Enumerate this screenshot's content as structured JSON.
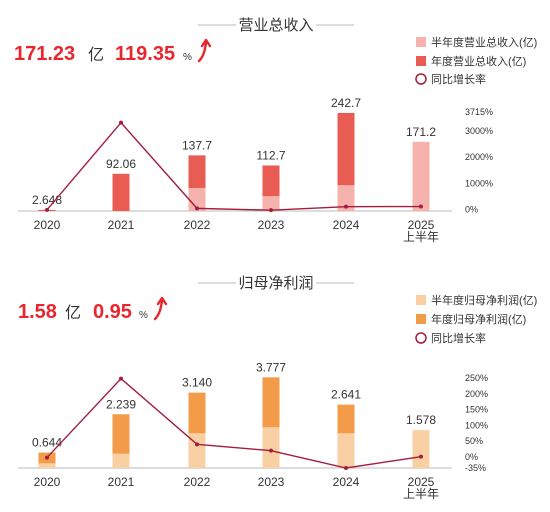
{
  "chart_data": [
    {
      "type": "bar",
      "title": "营业总收入",
      "headline": {
        "value1": "171.23",
        "unit1": "亿",
        "value2": "119.35",
        "unit2": "%"
      },
      "categories": [
        "2020",
        "2021",
        "2022",
        "2023",
        "2024",
        "2025\n上半年"
      ],
      "series": [
        {
          "name": "半年度营业总收入(亿)",
          "kind": "bar-half",
          "values": [
            null,
            null,
            57.0,
            37.0,
            64.0,
            171.23
          ]
        },
        {
          "name": "年度营业总收入(亿)",
          "kind": "bar-annual",
          "values": [
            2.648,
            92.06,
            137.7,
            112.7,
            242.7,
            null
          ]
        },
        {
          "name": "同比增长率",
          "kind": "line",
          "values": [
            -5,
            3310,
            50,
            -18,
            115,
            119.35
          ]
        }
      ],
      "value_labels": [
        "2.648",
        "92.06",
        "137.7",
        "112.7",
        "242.7",
        "171.2"
      ],
      "y_right_ticks": [
        "3715%",
        "3000%",
        "2000%",
        "1000%",
        "0%"
      ],
      "y_right_tick_values": [
        3715,
        3000,
        2000,
        1000,
        0
      ],
      "y_right_range": [
        -50,
        3715
      ],
      "y_left_max": 250,
      "colors": {
        "bar-half": "#f6b2ad",
        "bar-annual": "#e85c54",
        "line": "#a31e3e",
        "accent": "#e8262e"
      }
    },
    {
      "type": "bar",
      "title": "归母净利润",
      "headline": {
        "value1": "1.58",
        "unit1": "亿",
        "value2": "0.95",
        "unit2": "%"
      },
      "categories": [
        "2020",
        "2021",
        "2022",
        "2023",
        "2024",
        "2025\n上半年"
      ],
      "series": [
        {
          "name": "半年度归母净利润(亿)",
          "kind": "bar-half",
          "values": [
            0.2,
            0.6,
            1.45,
            1.7,
            1.45,
            1.578
          ]
        },
        {
          "name": "年度归母净利润(亿)",
          "kind": "bar-annual",
          "values": [
            0.644,
            2.239,
            3.14,
            3.777,
            2.641,
            null
          ]
        },
        {
          "name": "同比增长率",
          "kind": "line",
          "values": [
            -2,
            248,
            40,
            20,
            -35,
            0.95
          ]
        }
      ],
      "value_labels": [
        "0.644",
        "2.239",
        "3.140",
        "3.777",
        "2.641",
        "1.578"
      ],
      "y_right_ticks": [
        "250%",
        "200%",
        "150%",
        "100%",
        "50%",
        "0%",
        "-35%"
      ],
      "y_right_tick_values": [
        250,
        200,
        150,
        100,
        50,
        0,
        -35
      ],
      "y_right_range": [
        -35,
        250
      ],
      "y_left_max": 4.0,
      "colors": {
        "bar-half": "#f9cfa4",
        "bar-annual": "#f29b48",
        "line": "#a31e3e",
        "accent": "#e8262e"
      }
    }
  ]
}
